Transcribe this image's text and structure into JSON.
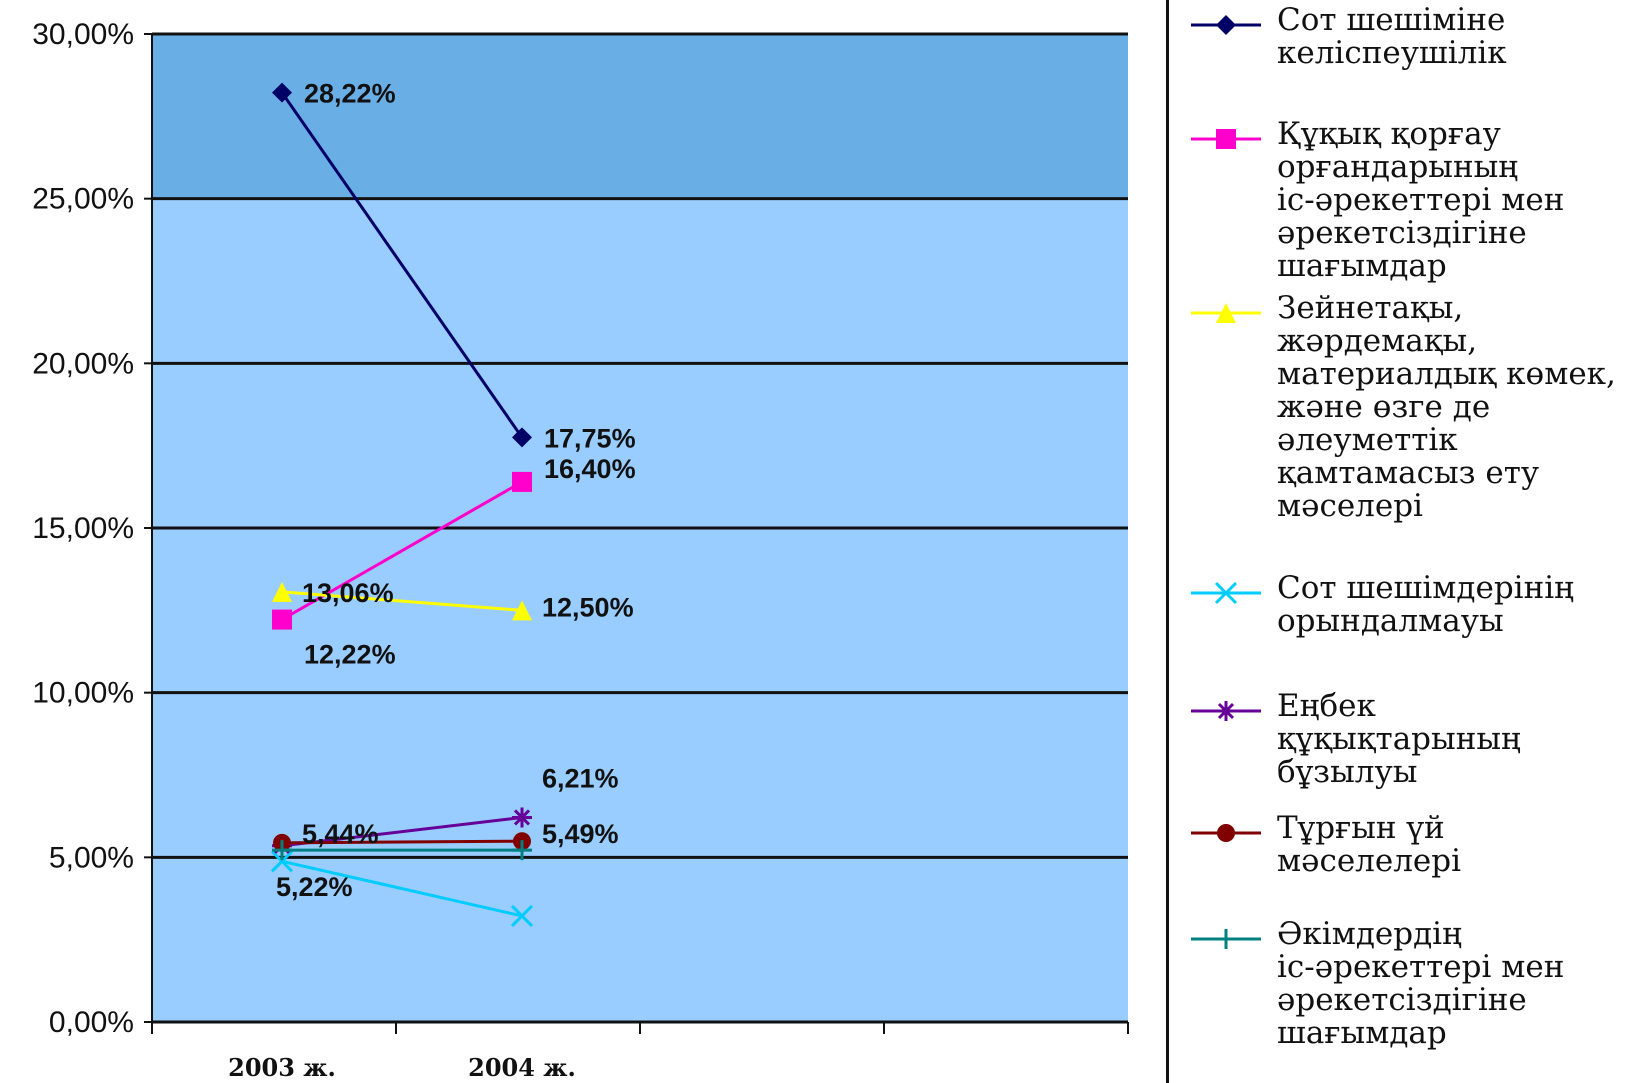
{
  "chart_data": {
    "type": "line",
    "categories": [
      "2003 ж.",
      "2004 ж."
    ],
    "ylim": [
      0,
      0.3
    ],
    "y_ticks": [
      "0,00%",
      "5,00%",
      "10,00%",
      "15,00%",
      "20,00%",
      "25,00%",
      "30,00%"
    ],
    "grid": true,
    "legend_position": "right",
    "plot_background": "#99ccff",
    "series": [
      {
        "name": "Сот шешіміне\nкеліспеушілік",
        "color": "#000066",
        "marker": "diamond",
        "values": [
          0.2822,
          0.1775
        ],
        "labels": [
          "28,22%",
          "17,75%"
        ]
      },
      {
        "name": "Құқық қорғау\nорғандарының\nіс-әрекеттері мен\nәрекетсіздігіне\nшағымдар",
        "color": "#ff00cc",
        "marker": "square",
        "values": [
          0.1222,
          0.164
        ],
        "labels": [
          "12,22%",
          "16,40%"
        ]
      },
      {
        "name": "Зейнетақы,\nжәрдемақы,\nматериалдық көмек,\nжәне өзге де\nәлеуметтік\nқамтамасыз ету\nмәселері",
        "color": "#ffff00",
        "marker": "triangle",
        "values": [
          0.1306,
          0.125
        ],
        "labels": [
          "13,06%",
          "12,50%"
        ]
      },
      {
        "name": "Сот шешімдерінің\nорындалмауы",
        "color": "#00ccff",
        "marker": "x",
        "values": [
          0.0488,
          0.0322
        ],
        "labels": [
          null,
          null
        ]
      },
      {
        "name": "Еңбек\nқұқықтарының\nбұзылуы",
        "color": "#660099",
        "marker": "star",
        "values": [
          0.0535,
          0.0621
        ],
        "labels": [
          null,
          "6,21%"
        ]
      },
      {
        "name": "Тұрғын үй\nмәселелері",
        "color": "#800000",
        "marker": "circle",
        "values": [
          0.0544,
          0.0549
        ],
        "labels": [
          "5,44%",
          "5,49%"
        ]
      },
      {
        "name": "Әкімдердің\nіс-әрекеттері мен\nәрекетсіздігіне\nшағымдар",
        "color": "#008080",
        "marker": "plus",
        "values": [
          0.0522,
          0.0522
        ],
        "labels": [
          "5,22%",
          null
        ]
      }
    ]
  }
}
